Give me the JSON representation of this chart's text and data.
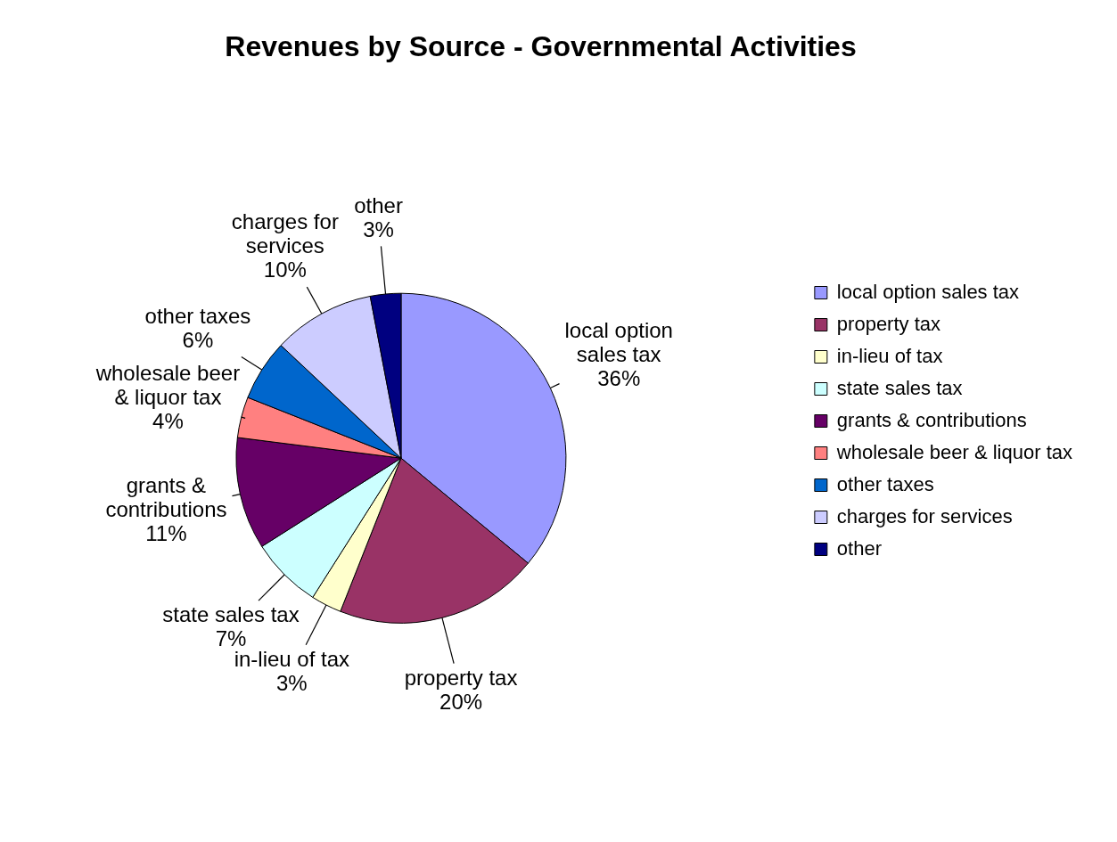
{
  "chart_data": {
    "type": "pie",
    "title": "Revenues by Source - Governmental Activities",
    "categories": [
      "local option sales tax",
      "property tax",
      "in-lieu of tax",
      "state sales tax",
      "grants & contributions",
      "wholesale beer & liquor tax",
      "other taxes",
      "charges for services",
      "other"
    ],
    "values": [
      36,
      20,
      3,
      7,
      11,
      4,
      6,
      10,
      3
    ],
    "value_labels": [
      "36%",
      "20%",
      "3%",
      "7%",
      "11%",
      "4%",
      "6%",
      "10%",
      "3%"
    ],
    "colors": [
      "#9999ff",
      "#993366",
      "#ffffcc",
      "#ccffff",
      "#660066",
      "#ff8080",
      "#0066cc",
      "#ccccff",
      "#000080"
    ],
    "legend": "right"
  }
}
